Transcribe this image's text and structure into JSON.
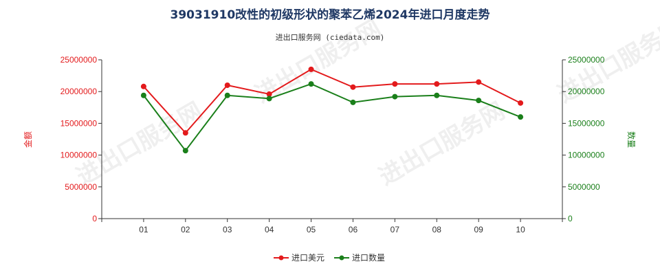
{
  "title": "39031910改性的初级形状的聚苯乙烯2024年进口月度走势",
  "subtitle": "进出口服务网 (ciedata.com)",
  "watermark": "进出口服务网",
  "colors": {
    "amount": "#e31a1c",
    "quantity": "#1a7f1a",
    "axis": "#333333",
    "title": "#1f3864"
  },
  "chart_data": {
    "type": "line",
    "categories": [
      "01",
      "02",
      "03",
      "04",
      "05",
      "06",
      "07",
      "08",
      "09",
      "10"
    ],
    "series": [
      {
        "name": "进口美元",
        "axis": "left",
        "values": [
          20800000,
          13500000,
          21000000,
          19600000,
          23500000,
          20700000,
          21200000,
          21200000,
          21500000,
          18200000
        ]
      },
      {
        "name": "进口数量",
        "axis": "right",
        "values": [
          19400000,
          10700000,
          19400000,
          18900000,
          21200000,
          18300000,
          19200000,
          19400000,
          18600000,
          16000000
        ]
      }
    ],
    "y_left": {
      "label": "金额",
      "min": 0,
      "max": 25000000,
      "ticks": [
        "0",
        "5000000",
        "10000000",
        "15000000",
        "20000000",
        "25000000"
      ]
    },
    "y_right": {
      "label": "数量",
      "min": 0,
      "max": 25000000,
      "ticks": [
        "0",
        "5000000",
        "10000000",
        "15000000",
        "20000000",
        "25000000"
      ]
    },
    "grid": false,
    "legend_position": "bottom-center"
  }
}
